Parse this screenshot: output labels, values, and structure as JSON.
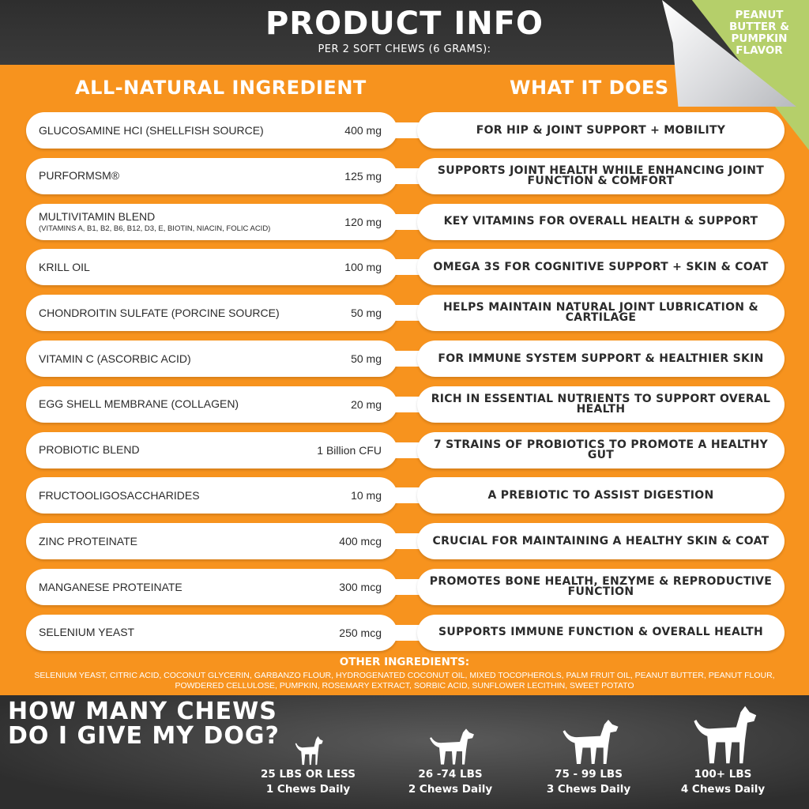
{
  "header": {
    "title": "PRODUCT INFO",
    "subtitle": "PER 2 SOFT CHEWS (6 GRAMS):",
    "flavor": "PEANUT BUTTER & PUMPKIN FLAVOR"
  },
  "columns": {
    "left": "ALL-NATURAL INGREDIENT",
    "right": "WHAT IT DOES"
  },
  "rows": [
    {
      "name": "GLUCOSAMINE HCI (SHELLFISH SOURCE)",
      "sub": "",
      "amount": "400 mg",
      "does": "FOR HIP & JOINT SUPPORT + MOBILITY"
    },
    {
      "name": "PURFORMSM®",
      "sub": "",
      "amount": "125 mg",
      "does": "SUPPORTS JOINT HEALTH WHILE ENHANCING JOINT FUNCTION & COMFORT"
    },
    {
      "name": "MULTIVITAMIN BLEND",
      "sub": "(VITAMINS A, B1, B2, B6, B12, D3, E, BIOTIN, NIACIN, FOLIC ACID)",
      "amount": "120 mg",
      "does": "KEY VITAMINS FOR OVERALL HEALTH & SUPPORT"
    },
    {
      "name": "KRILL OIL",
      "sub": "",
      "amount": "100 mg",
      "does": "OMEGA 3S FOR COGNITIVE SUPPORT + SKIN & COAT"
    },
    {
      "name": "CHONDROITIN SULFATE (PORCINE SOURCE)",
      "sub": "",
      "amount": "50 mg",
      "does": "HELPS MAINTAIN NATURAL JOINT LUBRICATION & CARTILAGE"
    },
    {
      "name": "VITAMIN C (ASCORBIC ACID)",
      "sub": "",
      "amount": "50 mg",
      "does": "FOR IMMUNE SYSTEM SUPPORT & HEALTHIER SKIN"
    },
    {
      "name": "EGG SHELL MEMBRANE (COLLAGEN)",
      "sub": "",
      "amount": "20 mg",
      "does": "RICH IN ESSENTIAL NUTRIENTS TO SUPPORT OVERAL HEALTH"
    },
    {
      "name": "PROBIOTIC BLEND",
      "sub": "",
      "amount": "1 Billion CFU",
      "does": "7 STRAINS OF PROBIOTICS TO PROMOTE A HEALTHY GUT"
    },
    {
      "name": "FRUCTOOLIGOSACCHARIDES",
      "sub": "",
      "amount": "10 mg",
      "does": "A PREBIOTIC TO ASSIST DIGESTION"
    },
    {
      "name": "ZINC PROTEINATE",
      "sub": "",
      "amount": "400 mcg",
      "does": "CRUCIAL FOR MAINTAINING A HEALTHY SKIN & COAT"
    },
    {
      "name": "MANGANESE PROTEINATE",
      "sub": "",
      "amount": "300 mcg",
      "does": "PROMOTES BONE HEALTH, ENZYME & REPRODUCTIVE FUNCTION"
    },
    {
      "name": "SELENIUM YEAST",
      "sub": "",
      "amount": "250 mcg",
      "does": "SUPPORTS IMMUNE FUNCTION & OVERALL HEALTH"
    }
  ],
  "other": {
    "heading": "OTHER INGREDIENTS:",
    "text": "SELENIUM YEAST, CITRIC ACID, COCONUT GLYCERIN, GARBANZO FLOUR, HYDROGENATED COCONUT OIL, MIXED TOCOPHEROLS, PALM FRUIT OIL, PEANUT BUTTER, PEANUT FLOUR, POWDERED CELLULOSE, PUMPKIN, ROSEMARY EXTRACT, SORBIC ACID, SUNFLOWER LECITHIN, SWEET POTATO"
  },
  "dosage": {
    "heading_line1": "HOW MANY CHEWS",
    "heading_line2": "DO I GIVE MY DOG?",
    "items": [
      {
        "weight": "25 LBS OR LESS",
        "chews": "1 Chews Daily",
        "icon": "small-dog-icon"
      },
      {
        "weight": "26 -74 LBS",
        "chews": "2 Chews Daily",
        "icon": "medium-dog-icon"
      },
      {
        "weight": "75 - 99 LBS",
        "chews": "3 Chews Daily",
        "icon": "large-dog-icon"
      },
      {
        "weight": "100+ LBS",
        "chews": "4 Chews Daily",
        "icon": "giant-dog-icon"
      }
    ]
  },
  "colors": {
    "orange": "#f7931e",
    "dark": "#333333",
    "green": "#b5cf6a",
    "white": "#ffffff"
  }
}
